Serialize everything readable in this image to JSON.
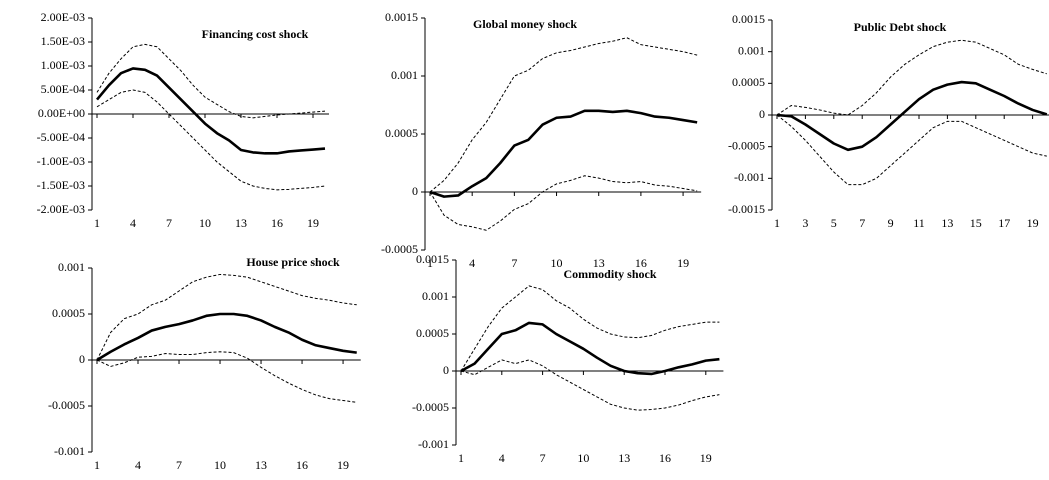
{
  "chart_data": [
    {
      "type": "line",
      "title": "Financing cost shock",
      "x": [
        1,
        2,
        3,
        4,
        5,
        6,
        7,
        8,
        9,
        10,
        11,
        12,
        13,
        14,
        15,
        16,
        17,
        18,
        19,
        20
      ],
      "xticks": [
        1,
        4,
        7,
        10,
        13,
        16,
        19
      ],
      "ylim": [
        -0.002,
        0.002
      ],
      "yticks": [
        {
          "value": 0.002,
          "label": "2.00E-03"
        },
        {
          "value": 0.0015,
          "label": "1.50E-03"
        },
        {
          "value": 0.001,
          "label": "1.00E-03"
        },
        {
          "value": 0.0005,
          "label": "5.00E-04"
        },
        {
          "value": 0,
          "label": "0.00E+00"
        },
        {
          "value": -0.0005,
          "label": "-5.00E-04"
        },
        {
          "value": -0.001,
          "label": "-1.00E-03"
        },
        {
          "value": -0.0015,
          "label": "-1.50E-03"
        },
        {
          "value": -0.002,
          "label": "-2.00E-03"
        }
      ],
      "series": [
        {
          "color": "#000000",
          "dashed": false,
          "values": [
            0.0003,
            0.0006,
            0.00085,
            0.00095,
            0.00092,
            0.0008,
            0.00055,
            0.0003,
            5e-05,
            -0.0002,
            -0.0004,
            -0.00055,
            -0.00075,
            -0.0008,
            -0.00082,
            -0.00082,
            -0.00078,
            -0.00076,
            -0.00074,
            -0.00072
          ]
        },
        {
          "color": "#000000",
          "dashed": true,
          "values": [
            0.00045,
            0.00085,
            0.00115,
            0.0014,
            0.00145,
            0.0014,
            0.00115,
            0.0009,
            0.0006,
            0.00035,
            0.0002,
            5e-05,
            -5e-05,
            -8e-05,
            -5e-05,
            -2e-05,
            0,
            2e-05,
            4e-05,
            6e-05
          ]
        },
        {
          "color": "#000000",
          "dashed": true,
          "values": [
            0.00015,
            0.0003,
            0.00045,
            0.0005,
            0.00045,
            0.00025,
            0,
            -0.00025,
            -0.0005,
            -0.00075,
            -0.001,
            -0.0012,
            -0.0014,
            -0.0015,
            -0.00155,
            -0.00158,
            -0.00157,
            -0.00155,
            -0.00153,
            -0.0015
          ]
        }
      ]
    },
    {
      "type": "line",
      "title": "Global money shock",
      "x": [
        1,
        2,
        3,
        4,
        5,
        6,
        7,
        8,
        9,
        10,
        11,
        12,
        13,
        14,
        15,
        16,
        17,
        18,
        19,
        20
      ],
      "xticks": [
        1,
        4,
        7,
        10,
        13,
        16,
        19
      ],
      "ylim": [
        -0.0005,
        0.0015
      ],
      "yticks": [
        0.0015,
        0.001,
        0.0005,
        0,
        -0.0005
      ],
      "series": [
        {
          "color": "#000000",
          "dashed": false,
          "values": [
            0,
            -4e-05,
            -3e-05,
            5e-05,
            0.00012,
            0.00025,
            0.0004,
            0.00045,
            0.00058,
            0.00064,
            0.00065,
            0.0007,
            0.0007,
            0.00069,
            0.0007,
            0.00068,
            0.00065,
            0.00064,
            0.00062,
            0.0006
          ]
        },
        {
          "color": "#000000",
          "dashed": true,
          "values": [
            0,
            0.0001,
            0.00025,
            0.00045,
            0.0006,
            0.0008,
            0.001,
            0.00105,
            0.00115,
            0.0012,
            0.00122,
            0.00125,
            0.00128,
            0.0013,
            0.00133,
            0.00127,
            0.00125,
            0.00123,
            0.00121,
            0.00118
          ]
        },
        {
          "color": "#000000",
          "dashed": true,
          "values": [
            0,
            -0.0002,
            -0.00028,
            -0.0003,
            -0.00033,
            -0.00025,
            -0.00015,
            -0.0001,
            0,
            7e-05,
            0.0001,
            0.00014,
            0.00012,
            9e-05,
            8e-05,
            9e-05,
            6e-05,
            5e-05,
            3e-05,
            1e-05
          ]
        }
      ]
    },
    {
      "type": "line",
      "title": "Public Debt shock",
      "x": [
        1,
        2,
        3,
        4,
        5,
        6,
        7,
        8,
        9,
        10,
        11,
        12,
        13,
        14,
        15,
        16,
        17,
        18,
        19,
        20
      ],
      "xticks": [
        1,
        3,
        5,
        7,
        9,
        11,
        13,
        15,
        17,
        19
      ],
      "ylim": [
        -0.0015,
        0.0015
      ],
      "yticks": [
        0.0015,
        0.001,
        0.0005,
        0,
        -0.0005,
        -0.001,
        -0.0015
      ],
      "series": [
        {
          "color": "#000000",
          "dashed": false,
          "values": [
            0,
            -2e-05,
            -0.00015,
            -0.0003,
            -0.00045,
            -0.00055,
            -0.0005,
            -0.00035,
            -0.00015,
            5e-05,
            0.00025,
            0.0004,
            0.00048,
            0.00052,
            0.0005,
            0.0004,
            0.0003,
            0.00018,
            8e-05,
            1e-05
          ]
        },
        {
          "color": "#000000",
          "dashed": true,
          "values": [
            0,
            0.00015,
            0.00012,
            8e-05,
            3e-05,
            0,
            0.00015,
            0.00035,
            0.0006,
            0.0008,
            0.00095,
            0.00108,
            0.00115,
            0.00118,
            0.00115,
            0.00105,
            0.00095,
            0.0008,
            0.00072,
            0.00065
          ]
        },
        {
          "color": "#000000",
          "dashed": true,
          "values": [
            0,
            -0.00018,
            -0.0004,
            -0.00065,
            -0.0009,
            -0.0011,
            -0.0011,
            -0.001,
            -0.0008,
            -0.0006,
            -0.0004,
            -0.0002,
            -0.0001,
            -0.0001,
            -0.0002,
            -0.0003,
            -0.0004,
            -0.0005,
            -0.0006,
            -0.00065
          ]
        }
      ]
    },
    {
      "type": "line",
      "title": "House price shock",
      "x": [
        1,
        2,
        3,
        4,
        5,
        6,
        7,
        8,
        9,
        10,
        11,
        12,
        13,
        14,
        15,
        16,
        17,
        18,
        19,
        20
      ],
      "xticks": [
        1,
        4,
        7,
        10,
        13,
        16,
        19
      ],
      "ylim": [
        -0.001,
        0.001
      ],
      "yticks": [
        0.001,
        0.0005,
        0,
        -0.0005,
        -0.001
      ],
      "series": [
        {
          "color": "#000000",
          "dashed": false,
          "values": [
            0,
            9e-05,
            0.00017,
            0.00024,
            0.00032,
            0.00036,
            0.00039,
            0.00043,
            0.00048,
            0.0005,
            0.0005,
            0.00048,
            0.00043,
            0.00036,
            0.0003,
            0.00022,
            0.00016,
            0.00013,
            0.0001,
            8e-05
          ]
        },
        {
          "color": "#000000",
          "dashed": true,
          "values": [
            0,
            0.0003,
            0.00045,
            0.0005,
            0.0006,
            0.00065,
            0.00075,
            0.00085,
            0.0009,
            0.00093,
            0.00092,
            0.0009,
            0.00085,
            0.0008,
            0.00075,
            0.0007,
            0.00067,
            0.00065,
            0.00062,
            0.0006
          ]
        },
        {
          "color": "#000000",
          "dashed": true,
          "values": [
            0,
            -7e-05,
            -3e-05,
            3e-05,
            4e-05,
            7e-05,
            6e-05,
            6e-05,
            8e-05,
            9e-05,
            8e-05,
            2e-05,
            -8e-05,
            -0.00017,
            -0.00025,
            -0.00032,
            -0.00038,
            -0.00042,
            -0.00044,
            -0.00046
          ]
        }
      ]
    },
    {
      "type": "line",
      "title": "Commodity shock",
      "x": [
        1,
        2,
        3,
        4,
        5,
        6,
        7,
        8,
        9,
        10,
        11,
        12,
        13,
        14,
        15,
        16,
        17,
        18,
        19,
        20
      ],
      "xticks": [
        1,
        4,
        7,
        10,
        13,
        16,
        19
      ],
      "ylim": [
        -0.001,
        0.0015
      ],
      "yticks": [
        0.0015,
        0.001,
        0.0005,
        0,
        -0.0005,
        -0.001
      ],
      "series": [
        {
          "color": "#000000",
          "dashed": false,
          "values": [
            0,
            0.0001,
            0.0003,
            0.0005,
            0.00055,
            0.00065,
            0.00063,
            0.0005,
            0.0004,
            0.0003,
            0.00018,
            7e-05,
            0,
            -3e-05,
            -4e-05,
            0,
            5e-05,
            9e-05,
            0.00014,
            0.00016
          ]
        },
        {
          "color": "#000000",
          "dashed": true,
          "values": [
            0,
            0.0003,
            0.0006,
            0.00085,
            0.001,
            0.00115,
            0.0011,
            0.00095,
            0.00085,
            0.0007,
            0.00058,
            0.0005,
            0.00046,
            0.00045,
            0.00048,
            0.00055,
            0.0006,
            0.00063,
            0.00066,
            0.00066
          ]
        },
        {
          "color": "#000000",
          "dashed": true,
          "values": [
            0,
            -5e-05,
            5e-05,
            0.00015,
            0.0001,
            0.00015,
            7e-05,
            -5e-05,
            -0.00015,
            -0.00025,
            -0.00035,
            -0.00045,
            -0.0005,
            -0.00053,
            -0.00052,
            -0.0005,
            -0.00046,
            -0.0004,
            -0.00035,
            -0.00032
          ]
        }
      ]
    }
  ]
}
